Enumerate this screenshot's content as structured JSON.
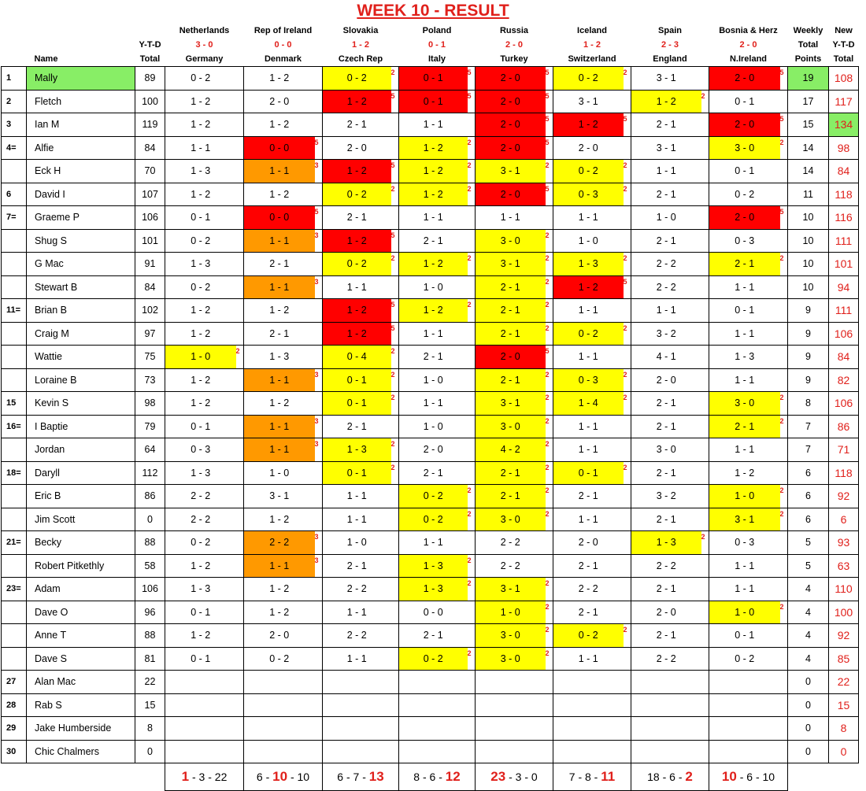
{
  "title": "WEEK 10 - RESULT",
  "headers": {
    "name": "Name",
    "ytd1": "Y-T-D",
    "ytd2": "Total",
    "weekly1": "Weekly",
    "weekly2": "Total",
    "weekly3": "Points",
    "new1": "New",
    "new2": "Y-T-D",
    "new3": "Total"
  },
  "matches": [
    {
      "home": "Netherlands",
      "score": "3 - 0",
      "away": "Germany"
    },
    {
      "home": "Rep of Ireland",
      "score": "0 - 0",
      "away": "Denmark"
    },
    {
      "home": "Slovakia",
      "score": "1 - 2",
      "away": "Czech Rep"
    },
    {
      "home": "Poland",
      "score": "0 - 1",
      "away": "Italy"
    },
    {
      "home": "Russia",
      "score": "2 - 0",
      "away": "Turkey"
    },
    {
      "home": "Iceland",
      "score": "1 - 2",
      "away": "Switzerland"
    },
    {
      "home": "Spain",
      "score": "2 - 3",
      "away": "England"
    },
    {
      "home": "Bosnia & Herz",
      "score": "2 - 0",
      "away": "N.Ireland"
    }
  ],
  "colors": {
    "yellow": "#ffff00",
    "red": "#ff0000",
    "orange": "#ff9900",
    "green": "#88ee66",
    "title_red": "#e0201b"
  },
  "rows": [
    {
      "pos": "1",
      "name": "Mally",
      "ytd": "89",
      "pred": [
        "0 - 2",
        "1 - 2",
        "0 - 2",
        "0 - 1",
        "2 - 0",
        "0 - 2",
        "3 - 1",
        "2 - 0"
      ],
      "pts": [
        "",
        "",
        "2",
        "5",
        "5",
        "2",
        "",
        "5"
      ],
      "cls": [
        "",
        "",
        "y",
        "r",
        "r",
        "y",
        "",
        "r"
      ],
      "weekly": "19",
      "new": "108",
      "hlname": true,
      "hlweekly": true
    },
    {
      "pos": "2",
      "name": "Fletch",
      "ytd": "100",
      "pred": [
        "1 - 2",
        "2 - 0",
        "1 - 2",
        "0 - 1",
        "2 - 0",
        "3 - 1",
        "1 - 2",
        "0 - 1"
      ],
      "pts": [
        "",
        "",
        "5",
        "5",
        "5",
        "",
        "2",
        ""
      ],
      "cls": [
        "",
        "",
        "r",
        "r",
        "r",
        "",
        "y",
        ""
      ],
      "weekly": "17",
      "new": "117"
    },
    {
      "pos": "3",
      "name": "Ian M",
      "ytd": "119",
      "pred": [
        "1 - 2",
        "1 - 2",
        "2 - 1",
        "1 - 1",
        "2 - 0",
        "1 - 2",
        "2 - 1",
        "2 - 0"
      ],
      "pts": [
        "",
        "",
        "",
        "",
        "5",
        "5",
        "",
        "5"
      ],
      "cls": [
        "",
        "",
        "",
        "",
        "r",
        "r",
        "",
        "r"
      ],
      "weekly": "15",
      "new": "134",
      "hlnew": true
    },
    {
      "pos": "4=",
      "name": "Alfie",
      "ytd": "84",
      "pred": [
        "1 - 1",
        "0 - 0",
        "2 - 0",
        "1 - 2",
        "2 - 0",
        "2 - 0",
        "3 - 1",
        "3 - 0"
      ],
      "pts": [
        "",
        "5",
        "",
        "2",
        "5",
        "",
        "",
        "2"
      ],
      "cls": [
        "",
        "r",
        "",
        "y",
        "r",
        "",
        "",
        "y"
      ],
      "weekly": "14",
      "new": "98"
    },
    {
      "pos": "",
      "name": "Eck H",
      "ytd": "70",
      "pred": [
        "1 - 3",
        "1 - 1",
        "1 - 2",
        "1 - 2",
        "3 - 1",
        "0 - 2",
        "1 - 1",
        "0 - 1"
      ],
      "pts": [
        "",
        "3",
        "5",
        "2",
        "2",
        "2",
        "",
        ""
      ],
      "cls": [
        "",
        "o",
        "r",
        "y",
        "y",
        "y",
        "",
        ""
      ],
      "weekly": "14",
      "new": "84"
    },
    {
      "pos": "6",
      "name": "David I",
      "ytd": "107",
      "pred": [
        "1 - 2",
        "1 - 2",
        "0 - 2",
        "1 - 2",
        "2 - 0",
        "0 - 3",
        "2 - 1",
        "0 - 2"
      ],
      "pts": [
        "",
        "",
        "2",
        "2",
        "5",
        "2",
        "",
        ""
      ],
      "cls": [
        "",
        "",
        "y",
        "y",
        "r",
        "y",
        "",
        ""
      ],
      "weekly": "11",
      "new": "118"
    },
    {
      "pos": "7=",
      "name": "Graeme P",
      "ytd": "106",
      "pred": [
        "0 - 1",
        "0 - 0",
        "2 - 1",
        "1 - 1",
        "1 - 1",
        "1 - 1",
        "1 - 0",
        "2 - 0"
      ],
      "pts": [
        "",
        "5",
        "",
        "",
        "",
        "",
        "",
        "5"
      ],
      "cls": [
        "",
        "r",
        "",
        "",
        "",
        "",
        "",
        "r"
      ],
      "weekly": "10",
      "new": "116"
    },
    {
      "pos": "",
      "name": "Shug S",
      "ytd": "101",
      "pred": [
        "0 - 2",
        "1 - 1",
        "1 - 2",
        "2 - 1",
        "3 - 0",
        "1 - 0",
        "2 - 1",
        "0 - 3"
      ],
      "pts": [
        "",
        "3",
        "5",
        "",
        "2",
        "",
        "",
        ""
      ],
      "cls": [
        "",
        "o",
        "r",
        "",
        "y",
        "",
        "",
        ""
      ],
      "weekly": "10",
      "new": "111"
    },
    {
      "pos": "",
      "name": "G Mac",
      "ytd": "91",
      "pred": [
        "1 - 3",
        "2 - 1",
        "0 - 2",
        "1 - 2",
        "3 - 1",
        "1 - 3",
        "2 - 2",
        "2 - 1"
      ],
      "pts": [
        "",
        "",
        "2",
        "2",
        "2",
        "2",
        "",
        "2"
      ],
      "cls": [
        "",
        "",
        "y",
        "y",
        "y",
        "y",
        "",
        "y"
      ],
      "weekly": "10",
      "new": "101"
    },
    {
      "pos": "",
      "name": "Stewart B",
      "ytd": "84",
      "pred": [
        "0 - 2",
        "1 - 1",
        "1 - 1",
        "1 - 0",
        "2 - 1",
        "1 - 2",
        "2 - 2",
        "1 - 1"
      ],
      "pts": [
        "",
        "3",
        "",
        "",
        "2",
        "5",
        "",
        ""
      ],
      "cls": [
        "",
        "o",
        "",
        "",
        "y",
        "r",
        "",
        ""
      ],
      "weekly": "10",
      "new": "94"
    },
    {
      "pos": "11=",
      "name": "Brian B",
      "ytd": "102",
      "pred": [
        "1 - 2",
        "1 - 2",
        "1 - 2",
        "1 - 2",
        "2 - 1",
        "1 - 1",
        "1 - 1",
        "0 - 1"
      ],
      "pts": [
        "",
        "",
        "5",
        "2",
        "2",
        "",
        "",
        ""
      ],
      "cls": [
        "",
        "",
        "r",
        "y",
        "y",
        "",
        "",
        ""
      ],
      "weekly": "9",
      "new": "111"
    },
    {
      "pos": "",
      "name": "Craig M",
      "ytd": "97",
      "pred": [
        "1 - 2",
        "2 - 1",
        "1 - 2",
        "1 - 1",
        "2 - 1",
        "0 - 2",
        "3 - 2",
        "1 - 1"
      ],
      "pts": [
        "",
        "",
        "5",
        "",
        "2",
        "2",
        "",
        ""
      ],
      "cls": [
        "",
        "",
        "r",
        "",
        "y",
        "y",
        "",
        ""
      ],
      "weekly": "9",
      "new": "106"
    },
    {
      "pos": "",
      "name": "Wattie",
      "ytd": "75",
      "pred": [
        "1 - 0",
        "1 - 3",
        "0 - 4",
        "2 - 1",
        "2 - 0",
        "1 - 1",
        "4 - 1",
        "1 - 3"
      ],
      "pts": [
        "2",
        "",
        "2",
        "",
        "5",
        "",
        "",
        ""
      ],
      "cls": [
        "y",
        "",
        "y",
        "",
        "r",
        "",
        "",
        ""
      ],
      "weekly": "9",
      "new": "84"
    },
    {
      "pos": "",
      "name": "Loraine B",
      "ytd": "73",
      "pred": [
        "1 - 2",
        "1 - 1",
        "0 - 1",
        "1 - 0",
        "2 - 1",
        "0 - 3",
        "2 - 0",
        "1 - 1"
      ],
      "pts": [
        "",
        "3",
        "2",
        "",
        "2",
        "2",
        "",
        ""
      ],
      "cls": [
        "",
        "o",
        "y",
        "",
        "y",
        "y",
        "",
        ""
      ],
      "weekly": "9",
      "new": "82"
    },
    {
      "pos": "15",
      "name": "Kevin S",
      "ytd": "98",
      "pred": [
        "1 - 2",
        "1 - 2",
        "0 - 1",
        "1 - 1",
        "3 - 1",
        "1 - 4",
        "2 - 1",
        "3 - 0"
      ],
      "pts": [
        "",
        "",
        "2",
        "",
        "2",
        "2",
        "",
        "2"
      ],
      "cls": [
        "",
        "",
        "y",
        "",
        "y",
        "y",
        "",
        "y"
      ],
      "weekly": "8",
      "new": "106"
    },
    {
      "pos": "16=",
      "name": "I Baptie",
      "ytd": "79",
      "pred": [
        "0 - 1",
        "1 - 1",
        "2 - 1",
        "1 - 0",
        "3 - 0",
        "1 - 1",
        "2 - 1",
        "2 - 1"
      ],
      "pts": [
        "",
        "3",
        "",
        "",
        "2",
        "",
        "",
        "2"
      ],
      "cls": [
        "",
        "o",
        "",
        "",
        "y",
        "",
        "",
        "y"
      ],
      "weekly": "7",
      "new": "86"
    },
    {
      "pos": "",
      "name": "Jordan",
      "ytd": "64",
      "pred": [
        "0 - 3",
        "1 - 1",
        "1 - 3",
        "2 - 0",
        "4 - 2",
        "1 - 1",
        "3 - 0",
        "1 - 1"
      ],
      "pts": [
        "",
        "3",
        "2",
        "",
        "2",
        "",
        "",
        ""
      ],
      "cls": [
        "",
        "o",
        "y",
        "",
        "y",
        "",
        "",
        ""
      ],
      "weekly": "7",
      "new": "71"
    },
    {
      "pos": "18=",
      "name": "Daryll",
      "ytd": "112",
      "pred": [
        "1 - 3",
        "1 - 0",
        "0 - 1",
        "2 - 1",
        "2 - 1",
        "0 - 1",
        "2 - 1",
        "1 - 2"
      ],
      "pts": [
        "",
        "",
        "2",
        "",
        "2",
        "2",
        "",
        ""
      ],
      "cls": [
        "",
        "",
        "y",
        "",
        "y",
        "y",
        "",
        ""
      ],
      "weekly": "6",
      "new": "118"
    },
    {
      "pos": "",
      "name": "Eric B",
      "ytd": "86",
      "pred": [
        "2 - 2",
        "3 - 1",
        "1 - 1",
        "0 - 2",
        "2 - 1",
        "2 - 1",
        "3 - 2",
        "1 - 0"
      ],
      "pts": [
        "",
        "",
        "",
        "2",
        "2",
        "",
        "",
        "2"
      ],
      "cls": [
        "",
        "",
        "",
        "y",
        "y",
        "",
        "",
        "y"
      ],
      "weekly": "6",
      "new": "92"
    },
    {
      "pos": "",
      "name": "Jim Scott",
      "ytd": "0",
      "pred": [
        "2 - 2",
        "1 - 2",
        "1 - 1",
        "0 - 2",
        "3 - 0",
        "1 - 1",
        "2 - 1",
        "3 - 1"
      ],
      "pts": [
        "",
        "",
        "",
        "2",
        "2",
        "",
        "",
        "2"
      ],
      "cls": [
        "",
        "",
        "",
        "y",
        "y",
        "",
        "",
        "y"
      ],
      "weekly": "6",
      "new": "6"
    },
    {
      "pos": "21=",
      "name": "Becky",
      "ytd": "88",
      "pred": [
        "0 - 2",
        "2 - 2",
        "1 - 0",
        "1 - 1",
        "2 - 2",
        "2 - 0",
        "1 - 3",
        "0 - 3"
      ],
      "pts": [
        "",
        "3",
        "",
        "",
        "",
        "",
        "2",
        ""
      ],
      "cls": [
        "",
        "o",
        "",
        "",
        "",
        "",
        "y",
        ""
      ],
      "weekly": "5",
      "new": "93"
    },
    {
      "pos": "",
      "name": "Robert Pitkethly",
      "ytd": "58",
      "pred": [
        "1 - 2",
        "1 - 1",
        "2 - 1",
        "1 - 3",
        "2 - 2",
        "2 - 1",
        "2 - 2",
        "1 - 1"
      ],
      "pts": [
        "",
        "3",
        "",
        "2",
        "",
        "",
        "",
        ""
      ],
      "cls": [
        "",
        "o",
        "",
        "y",
        "",
        "",
        "",
        ""
      ],
      "weekly": "5",
      "new": "63"
    },
    {
      "pos": "23=",
      "name": "Adam",
      "ytd": "106",
      "pred": [
        "1 - 3",
        "1 - 2",
        "2 - 2",
        "1 - 3",
        "3 - 1",
        "2 - 2",
        "2 - 1",
        "1 - 1"
      ],
      "pts": [
        "",
        "",
        "",
        "2",
        "2",
        "",
        "",
        ""
      ],
      "cls": [
        "",
        "",
        "",
        "y",
        "y",
        "",
        "",
        ""
      ],
      "weekly": "4",
      "new": "110"
    },
    {
      "pos": "",
      "name": "Dave O",
      "ytd": "96",
      "pred": [
        "0 - 1",
        "1 - 2",
        "1 - 1",
        "0 - 0",
        "1 - 0",
        "2 - 1",
        "2 - 0",
        "1 - 0"
      ],
      "pts": [
        "",
        "",
        "",
        "",
        "2",
        "",
        "",
        "2"
      ],
      "cls": [
        "",
        "",
        "",
        "",
        "y",
        "",
        "",
        "y"
      ],
      "weekly": "4",
      "new": "100"
    },
    {
      "pos": "",
      "name": "Anne T",
      "ytd": "88",
      "pred": [
        "1 - 2",
        "2 - 0",
        "2 - 2",
        "2 - 1",
        "3 - 0",
        "0 - 2",
        "2 - 1",
        "0 - 1"
      ],
      "pts": [
        "",
        "",
        "",
        "",
        "2",
        "2",
        "",
        ""
      ],
      "cls": [
        "",
        "",
        "",
        "",
        "y",
        "y",
        "",
        ""
      ],
      "weekly": "4",
      "new": "92"
    },
    {
      "pos": "",
      "name": "Dave S",
      "ytd": "81",
      "pred": [
        "0 - 1",
        "0 - 2",
        "1 - 1",
        "0 - 2",
        "3 - 0",
        "1 - 1",
        "2 - 2",
        "0 - 2"
      ],
      "pts": [
        "",
        "",
        "",
        "2",
        "2",
        "",
        "",
        ""
      ],
      "cls": [
        "",
        "",
        "",
        "y",
        "y",
        "",
        "",
        ""
      ],
      "weekly": "4",
      "new": "85"
    },
    {
      "pos": "27",
      "name": "Alan Mac",
      "ytd": "22",
      "pred": [
        "",
        "",
        "",
        "",
        "",
        "",
        "",
        ""
      ],
      "pts": [
        "",
        "",
        "",
        "",
        "",
        "",
        "",
        ""
      ],
      "cls": [
        "",
        "",
        "",
        "",
        "",
        "",
        "",
        ""
      ],
      "weekly": "0",
      "new": "22"
    },
    {
      "pos": "28",
      "name": "Rab S",
      "ytd": "15",
      "pred": [
        "",
        "",
        "",
        "",
        "",
        "",
        "",
        ""
      ],
      "pts": [
        "",
        "",
        "",
        "",
        "",
        "",
        "",
        ""
      ],
      "cls": [
        "",
        "",
        "",
        "",
        "",
        "",
        "",
        ""
      ],
      "weekly": "0",
      "new": "15"
    },
    {
      "pos": "29",
      "name": "Jake Humberside",
      "ytd": "8",
      "pred": [
        "",
        "",
        "",
        "",
        "",
        "",
        "",
        ""
      ],
      "pts": [
        "",
        "",
        "",
        "",
        "",
        "",
        "",
        ""
      ],
      "cls": [
        "",
        "",
        "",
        "",
        "",
        "",
        "",
        ""
      ],
      "weekly": "0",
      "new": "8"
    },
    {
      "pos": "30",
      "name": "Chic Chalmers",
      "ytd": "0",
      "pred": [
        "",
        "",
        "",
        "",
        "",
        "",
        "",
        ""
      ],
      "pts": [
        "",
        "",
        "",
        "",
        "",
        "",
        "",
        ""
      ],
      "cls": [
        "",
        "",
        "",
        "",
        "",
        "",
        "",
        ""
      ],
      "weekly": "0",
      "new": "0"
    }
  ],
  "footer": [
    {
      "a": "1",
      "b": " - 3 - ",
      "c": "22",
      "bold": "a"
    },
    {
      "a": "6 - ",
      "b": "10",
      "c": " - 10",
      "bold": "b"
    },
    {
      "a": "6 - 7 - ",
      "b": "",
      "c": "13",
      "bold": "c"
    },
    {
      "a": "8 - 6 - ",
      "b": "",
      "c": "12",
      "bold": "c"
    },
    {
      "a": "23",
      "b": " - 3 - 0",
      "c": "",
      "bold": "a"
    },
    {
      "a": "7 - 8 - ",
      "b": "",
      "c": "11",
      "bold": "c"
    },
    {
      "a": "18 - 6 - ",
      "b": "",
      "c": "2",
      "bold": "c"
    },
    {
      "a": "10",
      "b": " - 6 - 10",
      "c": "",
      "bold": "a"
    }
  ]
}
